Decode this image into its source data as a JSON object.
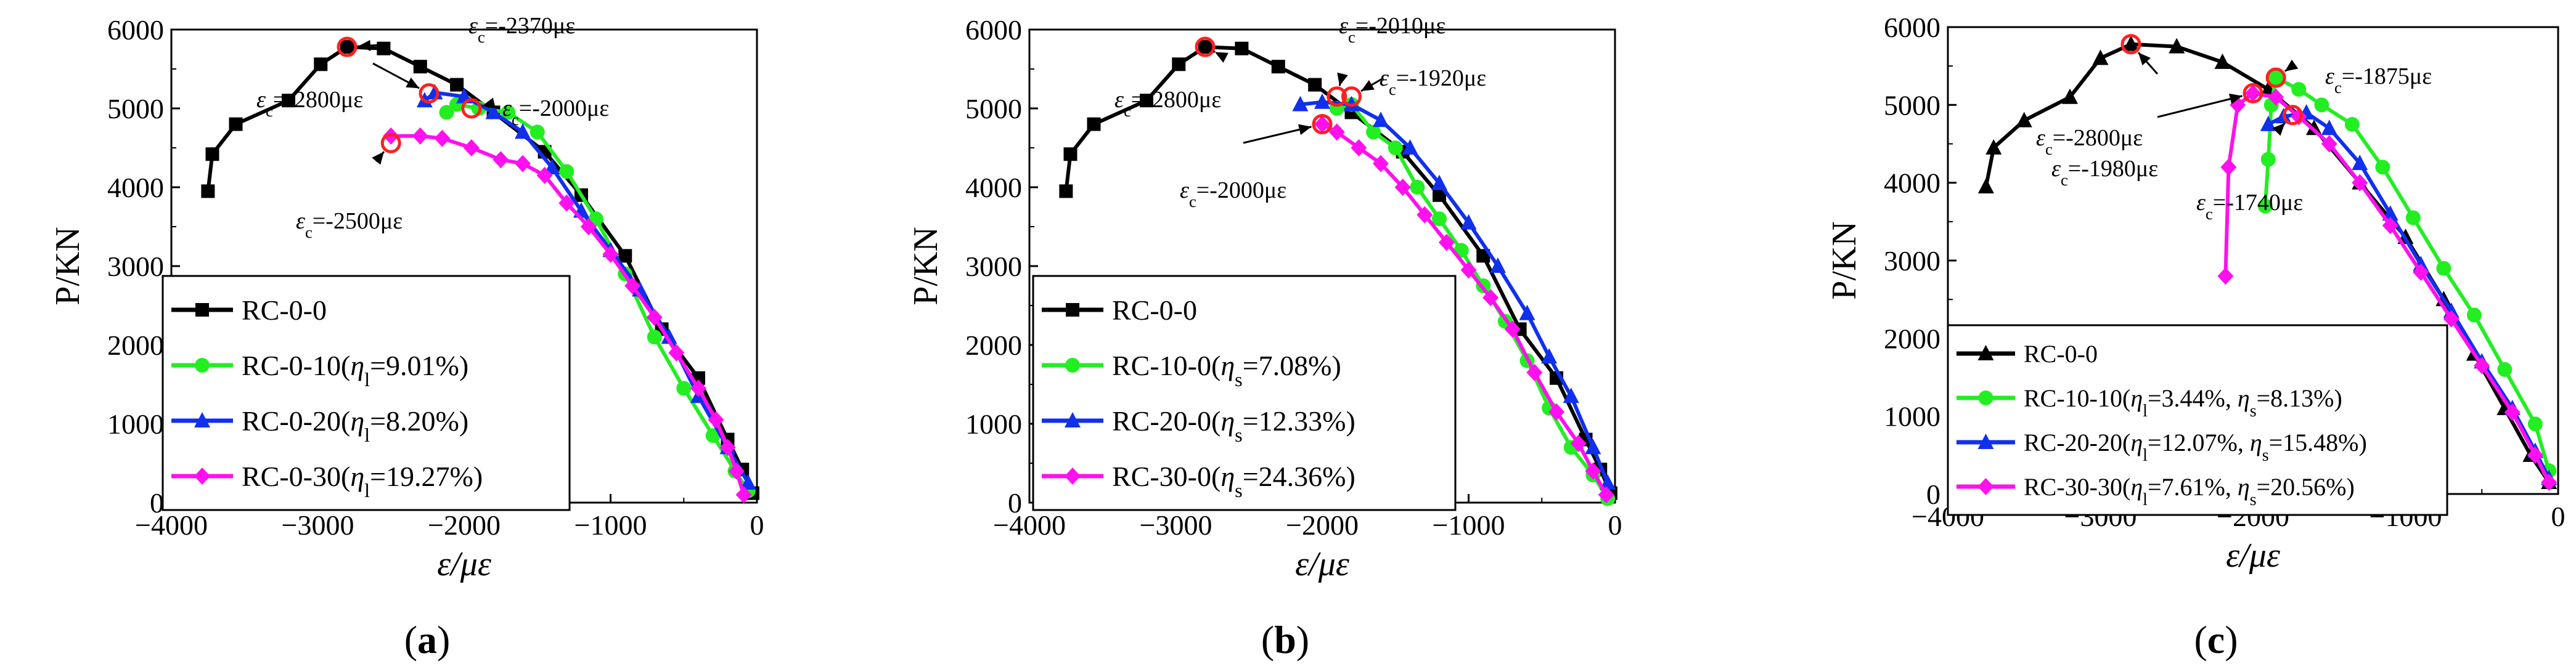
{
  "chart_data": [
    {
      "type": "line",
      "panel_label": "(a)",
      "xlabel": "ε/με",
      "ylabel": "P/KN",
      "xlim": [
        -4000,
        0
      ],
      "ylim": [
        0,
        6000
      ],
      "xticks": [
        -4000,
        -3000,
        -2000,
        -1000,
        0
      ],
      "yticks": [
        0,
        1000,
        2000,
        3000,
        4000,
        5000,
        6000
      ],
      "xtick_labels": [
        "−4000",
        "−3000",
        "−2000",
        "−1000",
        "0"
      ],
      "ytick_labels": [
        "0",
        "1000",
        "2000",
        "3000",
        "4000",
        "5000",
        "6000"
      ],
      "legend": {
        "placement": "bottom-left"
      },
      "series": [
        {
          "name": "RC-0-0",
          "legend_label": "RC-0-0",
          "color": "#000000",
          "marker": "square",
          "x": [
            -3750,
            -3720,
            -3560,
            -3200,
            -2980,
            -2800,
            -2550,
            -2300,
            -2050,
            -1800,
            -1450,
            -1200,
            -900,
            -650,
            -400,
            -200,
            -100,
            -30
          ],
          "y": [
            3950,
            4420,
            4800,
            5100,
            5560,
            5780,
            5760,
            5530,
            5300,
            4950,
            4450,
            3900,
            3130,
            2200,
            1580,
            800,
            420,
            120
          ]
        },
        {
          "name": "RC-0-10",
          "legend_label": "RC-0-10(η1=9.01%)",
          "color": "#22ee22",
          "marker": "circle",
          "x": [
            -2120,
            -2050,
            -1900,
            -1700,
            -1500,
            -1300,
            -1100,
            -900,
            -700,
            -500,
            -300,
            -150,
            -60
          ],
          "y": [
            4950,
            5050,
            5000,
            4950,
            4700,
            4200,
            3600,
            2900,
            2100,
            1450,
            850,
            400,
            150
          ]
        },
        {
          "name": "RC-0-20",
          "legend_label": "RC-0-20(η1=8.20%)",
          "color": "#1030ee",
          "marker": "triangle",
          "x": [
            -2270,
            -2200,
            -2000,
            -1800,
            -1600,
            -1400,
            -1200,
            -1000,
            -800,
            -600,
            -400,
            -200,
            -60
          ],
          "y": [
            5100,
            5200,
            5150,
            4950,
            4700,
            4250,
            3700,
            3200,
            2700,
            2100,
            1350,
            700,
            250
          ]
        },
        {
          "name": "RC-0-30",
          "legend_label": "RC-0-30(η1=19.27%)",
          "color": "#ff10ee",
          "marker": "diamond",
          "x": [
            -2500,
            -2300,
            -2150,
            -1950,
            -1750,
            -1600,
            -1450,
            -1300,
            -1150,
            -1000,
            -850,
            -700,
            -550,
            -400,
            -280,
            -200,
            -140,
            -90
          ],
          "y": [
            4650,
            4650,
            4620,
            4500,
            4350,
            4300,
            4150,
            3800,
            3500,
            3150,
            2750,
            2350,
            1900,
            1450,
            1050,
            700,
            400,
            100
          ]
        }
      ],
      "annotations": [
        {
          "text": "εc=-2370με",
          "x": -2800,
          "y": 5780
        },
        {
          "text": "εc=-2000με",
          "x": -1950,
          "y": 5000
        },
        {
          "text": "εc=-2800με",
          "x": -2240,
          "y": 5190
        },
        {
          "text": "εc=-2500με",
          "x": -2500,
          "y": 4560
        }
      ]
    },
    {
      "type": "line",
      "panel_label": "(b)",
      "xlabel": "ε/με",
      "ylabel": "P/KN",
      "xlim": [
        -4000,
        0
      ],
      "ylim": [
        0,
        6000
      ],
      "xticks": [
        -4000,
        -3000,
        -2000,
        -1000,
        0
      ],
      "yticks": [
        0,
        1000,
        2000,
        3000,
        4000,
        5000,
        6000
      ],
      "xtick_labels": [
        "−4000",
        "−3000",
        "−2000",
        "−1000",
        "0"
      ],
      "ytick_labels": [
        "0",
        "1000",
        "2000",
        "3000",
        "4000",
        "5000",
        "6000"
      ],
      "legend": {
        "placement": "bottom-left"
      },
      "series": [
        {
          "name": "RC-0-0",
          "legend_label": "RC-0-0",
          "color": "#000000",
          "marker": "square",
          "x": [
            -3750,
            -3720,
            -3560,
            -3200,
            -2980,
            -2800,
            -2550,
            -2300,
            -2050,
            -1800,
            -1450,
            -1200,
            -900,
            -650,
            -400,
            -200,
            -100,
            -30
          ],
          "y": [
            3950,
            4420,
            4800,
            5100,
            5560,
            5780,
            5760,
            5530,
            5300,
            4950,
            4450,
            3900,
            3130,
            2200,
            1580,
            800,
            420,
            120
          ]
        },
        {
          "name": "RC-10-0",
          "legend_label": "RC-10-0(ηs=7.08%)",
          "color": "#22ee22",
          "marker": "circle",
          "x": [
            -1900,
            -1800,
            -1650,
            -1500,
            -1350,
            -1200,
            -1050,
            -900,
            -750,
            -600,
            -450,
            -300,
            -150,
            -50
          ],
          "y": [
            5000,
            5050,
            4700,
            4500,
            4000,
            3600,
            3200,
            2750,
            2300,
            1800,
            1200,
            700,
            350,
            50
          ]
        },
        {
          "name": "RC-20-0",
          "legend_label": "RC-20-0(ηs=12.33%)",
          "color": "#1030ee",
          "marker": "triangle",
          "x": [
            -2150,
            -2000,
            -1800,
            -1600,
            -1400,
            -1200,
            -1000,
            -800,
            -600,
            -450,
            -300,
            -150,
            -50
          ],
          "y": [
            5050,
            5080,
            5050,
            4850,
            4500,
            4050,
            3550,
            3000,
            2400,
            1850,
            1350,
            700,
            250
          ]
        },
        {
          "name": "RC-30-0",
          "legend_label": "RC-30-0(ηs=24.36%)",
          "color": "#ff10ee",
          "marker": "diamond",
          "x": [
            -2000,
            -1900,
            -1750,
            -1600,
            -1450,
            -1300,
            -1150,
            -1000,
            -850,
            -700,
            -550,
            -400,
            -250,
            -150,
            -60
          ],
          "y": [
            4800,
            4700,
            4500,
            4300,
            4000,
            3650,
            3300,
            2950,
            2600,
            2200,
            1650,
            1150,
            750,
            400,
            100
          ]
        }
      ],
      "annotations": [
        {
          "text": "εc=-2010με",
          "x": -1900,
          "y": 5150
        },
        {
          "text": "εc=-1920με",
          "x": -1800,
          "y": 5150
        },
        {
          "text": "εc=-2800με",
          "x": -2800,
          "y": 5780
        },
        {
          "text": "εc=-2000με",
          "x": -2000,
          "y": 4800
        }
      ]
    },
    {
      "type": "line",
      "panel_label": "(c)",
      "xlabel": "ε/με",
      "ylabel": "P/KN",
      "xlim": [
        -4000,
        0
      ],
      "ylim": [
        0,
        6000
      ],
      "xticks": [
        -4000,
        -3000,
        -2000,
        -1000,
        0
      ],
      "yticks": [
        0,
        1000,
        2000,
        3000,
        4000,
        5000,
        6000
      ],
      "xtick_labels": [
        "−4000",
        "−3000",
        "−2000",
        "−1000",
        "0"
      ],
      "ytick_labels": [
        "0",
        "1000",
        "2000",
        "3000",
        "4000",
        "5000",
        "6000"
      ],
      "legend": {
        "placement": "bottom-left"
      },
      "series": [
        {
          "name": "RC-0-0",
          "legend_label": "RC-0-0",
          "color": "#000000",
          "marker": "triangle",
          "x": [
            -3750,
            -3700,
            -3500,
            -3200,
            -3000,
            -2800,
            -2500,
            -2200,
            -1900,
            -1600,
            -1300,
            -1000,
            -750,
            -550,
            -350,
            -180,
            -60
          ],
          "y": [
            3950,
            4450,
            4800,
            5100,
            5600,
            5780,
            5750,
            5550,
            5200,
            4700,
            4000,
            3300,
            2500,
            1800,
            1100,
            500,
            150
          ]
        },
        {
          "name": "RC-10-10",
          "legend_label": "RC-10-10(η1=3.44%, ηs=8.13%)",
          "color": "#22ee22",
          "marker": "circle",
          "x": [
            -1920,
            -1900,
            -1880,
            -1850,
            -1700,
            -1550,
            -1350,
            -1150,
            -950,
            -750,
            -550,
            -350,
            -150,
            -60
          ],
          "y": [
            3700,
            4300,
            5000,
            5350,
            5200,
            5000,
            4750,
            4200,
            3550,
            2900,
            2300,
            1600,
            900,
            300
          ]
        },
        {
          "name": "RC-20-20",
          "legend_label": "RC-20-20(η1=12.07%, ηs=15.48%)",
          "color": "#1030ee",
          "marker": "triangle",
          "x": [
            -1900,
            -1800,
            -1650,
            -1500,
            -1300,
            -1100,
            -900,
            -700,
            -500,
            -300,
            -150,
            -60
          ],
          "y": [
            4750,
            4850,
            4900,
            4700,
            4250,
            3600,
            2950,
            2350,
            1700,
            1100,
            550,
            200
          ]
        },
        {
          "name": "RC-30-30",
          "legend_label": "RC-30-30(η1=7.61%, ηs=20.56%)",
          "color": "#ff10ee",
          "marker": "diamond",
          "x": [
            -2180,
            -2160,
            -2100,
            -2000,
            -1850,
            -1700,
            -1500,
            -1300,
            -1100,
            -900,
            -700,
            -500,
            -300,
            -150,
            -60
          ],
          "y": [
            2800,
            4200,
            5000,
            5150,
            5100,
            4850,
            4500,
            4000,
            3450,
            2850,
            2250,
            1650,
            1050,
            500,
            150
          ]
        }
      ],
      "annotations": [
        {
          "text": "εc=-1875με",
          "x": -1850,
          "y": 5350
        },
        {
          "text": "εc=-2800με",
          "x": -2800,
          "y": 5780
        },
        {
          "text": "εc=-1980με",
          "x": -2000,
          "y": 5150
        },
        {
          "text": "εc=-1740με",
          "x": -1740,
          "y": 4870
        }
      ]
    }
  ]
}
